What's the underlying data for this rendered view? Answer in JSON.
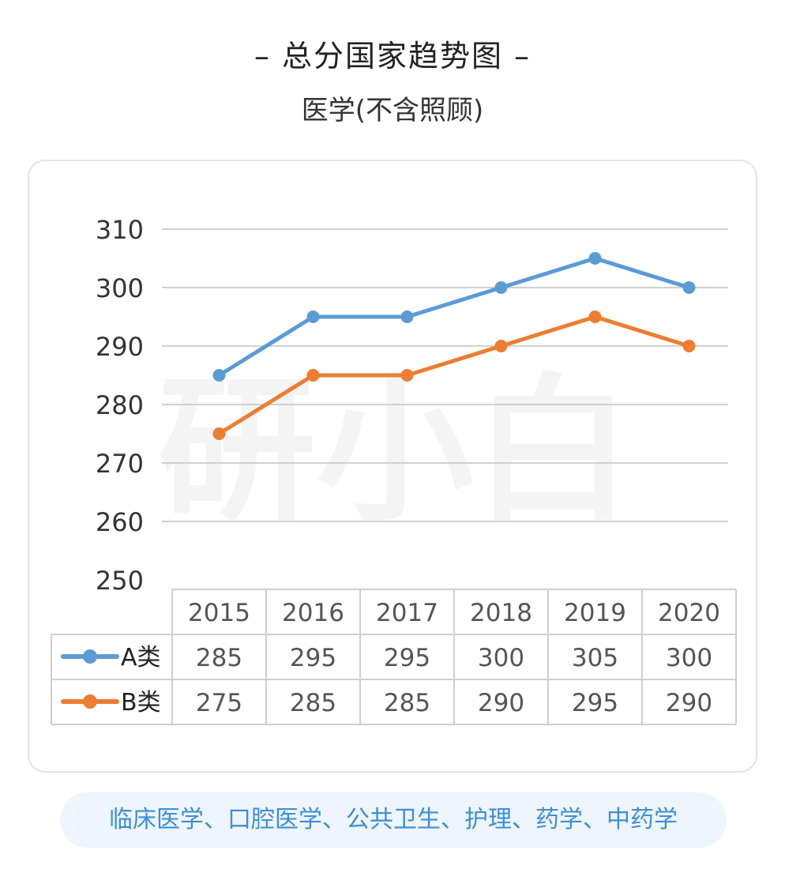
{
  "header": {
    "title": "– 总分国家趋势图 –",
    "subtitle": "医学(不含照顾)"
  },
  "watermark": "研小白",
  "footer": {
    "text": "临床医学、口腔医学、公共卫生、护理、药学、中药学"
  },
  "colors": {
    "series_a": "#5b9bd5",
    "series_b": "#ed7d31",
    "grid": "#d0d0d0",
    "footer_text": "#3d8fd6",
    "footer_bg": "#eef5fc"
  },
  "chart_data": {
    "type": "line",
    "title": "– 总分国家趋势图 –",
    "subtitle": "医学(不含照顾)",
    "categories": [
      "2015",
      "2016",
      "2017",
      "2018",
      "2019",
      "2020"
    ],
    "series": [
      {
        "name": "A类",
        "values": [
          285,
          295,
          295,
          300,
          305,
          300
        ],
        "color": "#5b9bd5"
      },
      {
        "name": "B类",
        "values": [
          275,
          285,
          285,
          290,
          295,
          290
        ],
        "color": "#ed7d31"
      }
    ],
    "ylim": [
      250,
      310
    ],
    "yticks": [
      250,
      260,
      270,
      280,
      290,
      300,
      310
    ],
    "grid": true,
    "legend": "data-table-below"
  }
}
